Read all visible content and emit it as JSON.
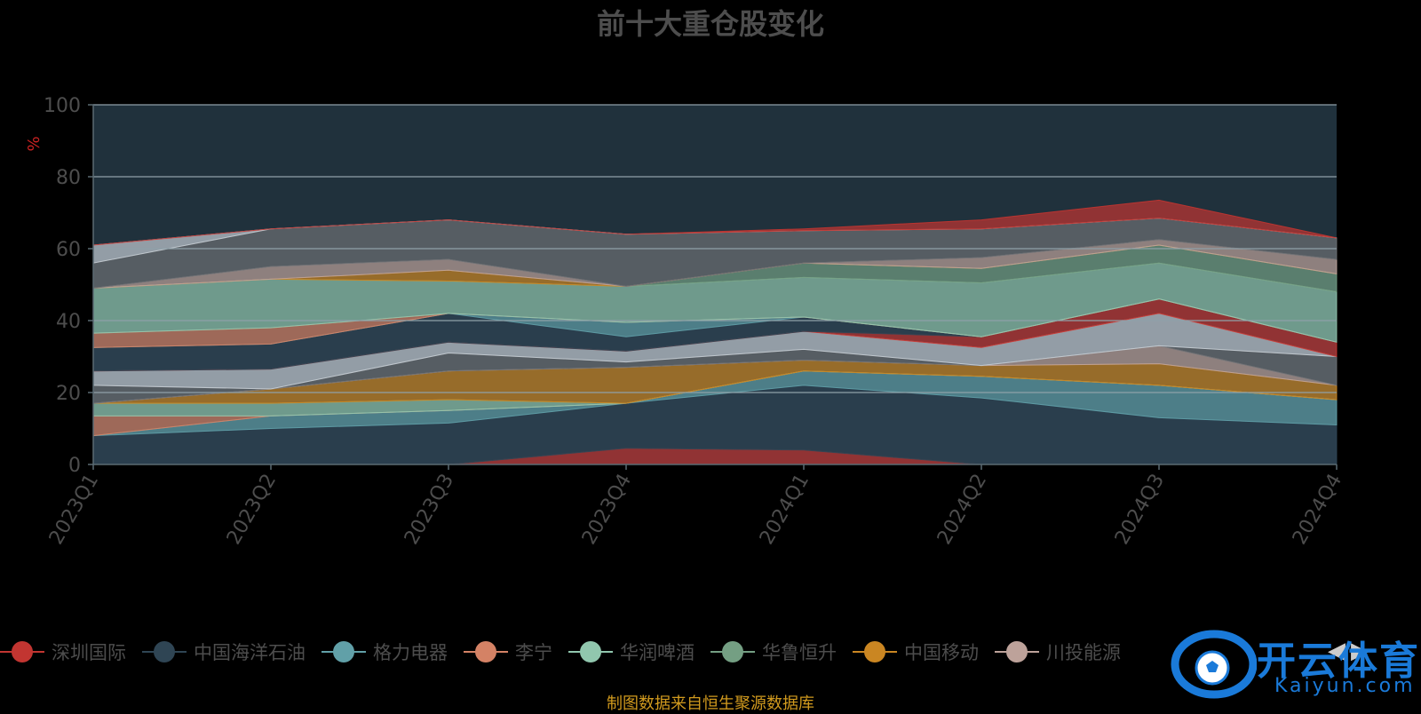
{
  "title": "前十大重仓股变化",
  "footnote": "制图数据来自恒生聚源数据库",
  "watermark": {
    "text_cn": "开云体育",
    "text_en": "Kaiyun.com",
    "icon": "soccer-ball-icon"
  },
  "colors": {
    "plot_bg": "#20313c",
    "grid": "#8fa1a9",
    "axis_text": "#4d4d4d",
    "ylabel": "#cc2222",
    "title": "#4d4d4d",
    "footnote": "#d19a1e"
  },
  "legend_page_icons": [
    "chevron-left-icon",
    "chevron-right-icon"
  ],
  "chart_data": {
    "type": "area",
    "title": "前十大重仓股变化",
    "xlabel": "",
    "ylabel": "%",
    "ylim": [
      0,
      100
    ],
    "yticks": [
      0,
      20,
      40,
      60,
      80,
      100
    ],
    "grid": true,
    "legend_position": "bottom",
    "stacked": true,
    "x": [
      "2023Q1",
      "2023Q2",
      "2023Q3",
      "2023Q4",
      "2024Q1",
      "2024Q2",
      "2024Q3",
      "2024Q4"
    ],
    "series": [
      {
        "name": "深圳国际",
        "color": "#c23531",
        "values": [
          0,
          0,
          0,
          4.5,
          4,
          0,
          0,
          0
        ]
      },
      {
        "name": "中国海洋石油",
        "color": "#2f4554",
        "values": [
          8,
          10,
          11.5,
          12.5,
          18,
          18.5,
          13,
          11
        ]
      },
      {
        "name": "格力电器",
        "color": "#61a0a8",
        "values": [
          0,
          3.5,
          3.5,
          0,
          4,
          6,
          9,
          7
        ]
      },
      {
        "name": "李宁",
        "color": "#d48265",
        "values": [
          5.5,
          0,
          0,
          0,
          0,
          0,
          0,
          0
        ]
      },
      {
        "name": "华润啤酒",
        "color": "#91c7ae",
        "values": [
          3.5,
          3.5,
          3,
          0,
          0,
          0,
          0,
          0
        ]
      },
      {
        "name": "华鲁恒升",
        "color": "#749f83",
        "values": [
          0,
          0,
          0,
          0,
          0,
          0,
          0,
          0
        ]
      },
      {
        "name": "中国移动",
        "color": "#ca8622",
        "values": [
          0,
          4,
          8,
          10,
          3,
          3,
          6,
          4
        ]
      },
      {
        "name": "川投能源",
        "color": "#bda29a",
        "values": [
          0,
          0,
          0,
          0,
          0,
          0,
          5,
          0
        ]
      },
      {
        "name": "",
        "color": "#6e7074",
        "values": [
          5,
          0,
          5,
          1.5,
          3,
          0,
          0,
          8
        ]
      },
      {
        "name": "",
        "color": "#c4ccd3",
        "values": [
          4,
          5.5,
          3,
          3,
          5,
          5,
          9,
          0
        ]
      },
      {
        "name": "",
        "color": "#c23531",
        "values": [
          0,
          0,
          0,
          0,
          0,
          3,
          4,
          4
        ]
      },
      {
        "name": "",
        "color": "#2f4554",
        "values": [
          6.5,
          7,
          8,
          4,
          4,
          0,
          0,
          0
        ]
      },
      {
        "name": "",
        "color": "#61a0a8",
        "values": [
          0,
          0,
          0,
          4,
          0,
          0,
          0,
          0
        ]
      },
      {
        "name": "",
        "color": "#d48265",
        "values": [
          4,
          4.5,
          0,
          0,
          0,
          0,
          0,
          0
        ]
      },
      {
        "name": "",
        "color": "#91c7ae",
        "values": [
          12.5,
          13.5,
          9,
          10,
          11,
          15,
          10,
          14
        ]
      },
      {
        "name": "",
        "color": "#749f83",
        "values": [
          0,
          0,
          0,
          0,
          4,
          4,
          5,
          5
        ]
      },
      {
        "name": "",
        "color": "#ca8622",
        "values": [
          0,
          0,
          3,
          0,
          0,
          0,
          0,
          0
        ]
      },
      {
        "name": "",
        "color": "#bda29a",
        "values": [
          0,
          3.5,
          3,
          0,
          0,
          3,
          1.5,
          4
        ]
      },
      {
        "name": "",
        "color": "#6e7074",
        "values": [
          7,
          10.5,
          11,
          14.5,
          9,
          8,
          6,
          6
        ]
      },
      {
        "name": "",
        "color": "#c4ccd3",
        "values": [
          5,
          0,
          0,
          0,
          0,
          0,
          0,
          0
        ]
      },
      {
        "name": "",
        "color": "#c23531",
        "values": [
          0,
          0,
          0,
          0,
          0.5,
          2.5,
          5,
          0
        ]
      }
    ]
  }
}
